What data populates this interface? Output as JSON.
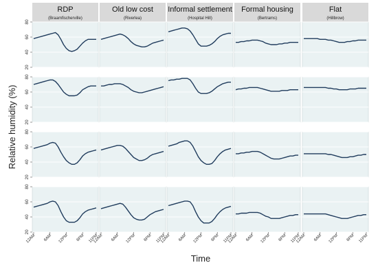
{
  "chart_data": {
    "type": "line",
    "title": "",
    "xlabel": "Time",
    "ylabel": "Relative humidity (%)",
    "ylim": [
      20,
      80
    ],
    "yticks": [
      "20",
      "40",
      "60",
      "80"
    ],
    "xlim": [
      0,
      23
    ],
    "x_tick_positions": [
      0,
      6,
      12,
      18,
      23
    ],
    "x_tick_labels": [
      "12AM",
      "6AM",
      "12PM",
      "6PM",
      "11PM"
    ],
    "x": [
      0,
      1,
      2,
      3,
      4,
      5,
      6,
      7,
      8,
      9,
      10,
      11,
      12,
      13,
      14,
      15,
      16,
      17,
      18,
      19,
      20,
      21,
      22,
      23
    ],
    "grid": true,
    "legend": "none",
    "line_color": "#1f3b5c",
    "panel_header_color": "#d9d9d9",
    "plot_bg_color": "#eaf2f3",
    "columns": [
      {
        "name": "RDP",
        "sub": "(Braamfischerville)"
      },
      {
        "name": "Old low cost",
        "sub": "(Riverlea)"
      },
      {
        "name": "Informal settlement",
        "sub": "(Hospital Hill)"
      },
      {
        "name": "Formal housing",
        "sub": "(Bertrams)"
      },
      {
        "name": "Flat",
        "sub": "(Hillbrow)"
      }
    ],
    "rows": [
      {
        "series": [
          {
            "values": [
              58,
              59,
              60,
              61,
              62,
              63,
              64,
              65,
              66,
              63,
              57,
              50,
              45,
              42,
              41,
              42,
              44,
              48,
              52,
              55,
              57,
              57,
              57,
              57
            ]
          },
          {
            "values": [
              57,
              58,
              59,
              60,
              61,
              62,
              63,
              64,
              63,
              61,
              58,
              54,
              51,
              49,
              48,
              47,
              47,
              48,
              50,
              52,
              53,
              54,
              55,
              56
            ]
          },
          {
            "values": [
              67,
              68,
              69,
              70,
              71,
              72,
              72,
              71,
              68,
              63,
              57,
              51,
              48,
              48,
              48,
              49,
              51,
              54,
              58,
              61,
              63,
              64,
              65,
              65
            ]
          },
          {
            "values": [
              53,
              53,
              54,
              54,
              55,
              55,
              56,
              56,
              56,
              55,
              54,
              52,
              51,
              50,
              50,
              50,
              51,
              51,
              52,
              52,
              53,
              53,
              53,
              53
            ]
          },
          {
            "values": [
              58,
              58,
              58,
              58,
              58,
              58,
              57,
              57,
              57,
              56,
              56,
              55,
              54,
              53,
              53,
              53,
              54,
              54,
              55,
              55,
              56,
              56,
              56,
              56
            ]
          }
        ]
      },
      {
        "series": [
          {
            "values": [
              70,
              71,
              72,
              73,
              74,
              75,
              76,
              76,
              74,
              70,
              65,
              60,
              57,
              55,
              55,
              55,
              56,
              59,
              63,
              65,
              67,
              68,
              68,
              68
            ]
          },
          {
            "values": [
              68,
              68,
              69,
              70,
              70,
              71,
              71,
              71,
              70,
              68,
              66,
              63,
              61,
              60,
              59,
              59,
              60,
              61,
              62,
              63,
              64,
              65,
              66,
              67
            ]
          },
          {
            "values": [
              75,
              76,
              76,
              77,
              77,
              78,
              78,
              78,
              76,
              71,
              65,
              60,
              58,
              58,
              58,
              59,
              61,
              64,
              67,
              69,
              71,
              72,
              73,
              73
            ]
          },
          {
            "values": [
              63,
              64,
              64,
              65,
              65,
              66,
              66,
              66,
              66,
              65,
              64,
              63,
              62,
              61,
              61,
              61,
              61,
              62,
              62,
              62,
              63,
              63,
              63,
              63
            ]
          },
          {
            "values": [
              66,
              66,
              66,
              66,
              66,
              66,
              66,
              66,
              66,
              65,
              65,
              64,
              64,
              63,
              63,
              63,
              63,
              64,
              64,
              64,
              65,
              65,
              65,
              65
            ]
          }
        ]
      },
      {
        "series": [
          {
            "values": [
              58,
              59,
              60,
              61,
              62,
              63,
              65,
              66,
              65,
              60,
              53,
              47,
              42,
              39,
              37,
              37,
              39,
              43,
              48,
              51,
              53,
              54,
              55,
              56
            ]
          },
          {
            "values": [
              56,
              57,
              58,
              59,
              60,
              61,
              62,
              62,
              61,
              58,
              54,
              50,
              46,
              44,
              42,
              42,
              43,
              45,
              48,
              50,
              51,
              52,
              53,
              54
            ]
          },
          {
            "values": [
              61,
              62,
              63,
              64,
              66,
              67,
              68,
              68,
              66,
              61,
              54,
              47,
              42,
              39,
              37,
              37,
              38,
              42,
              47,
              51,
              54,
              56,
              57,
              58
            ]
          },
          {
            "values": [
              51,
              51,
              52,
              52,
              53,
              53,
              54,
              54,
              54,
              53,
              51,
              49,
              47,
              45,
              44,
              44,
              44,
              45,
              46,
              47,
              48,
              48,
              49,
              49
            ]
          },
          {
            "values": [
              51,
              51,
              51,
              51,
              51,
              51,
              51,
              51,
              51,
              50,
              50,
              49,
              48,
              47,
              46,
              46,
              46,
              47,
              47,
              48,
              49,
              49,
              50,
              50
            ]
          }
        ]
      },
      {
        "series": [
          {
            "values": [
              53,
              54,
              55,
              56,
              57,
              58,
              60,
              61,
              60,
              55,
              47,
              40,
              35,
              33,
              33,
              33,
              35,
              39,
              44,
              47,
              49,
              50,
              51,
              52
            ]
          },
          {
            "values": [
              51,
              52,
              53,
              54,
              55,
              56,
              57,
              58,
              57,
              53,
              48,
              43,
              39,
              37,
              36,
              36,
              37,
              40,
              43,
              45,
              47,
              48,
              49,
              50
            ]
          },
          {
            "values": [
              55,
              56,
              57,
              58,
              59,
              60,
              61,
              61,
              60,
              55,
              47,
              40,
              35,
              32,
              32,
              32,
              34,
              38,
              43,
              47,
              50,
              52,
              53,
              54
            ]
          },
          {
            "values": [
              44,
              44,
              45,
              45,
              45,
              46,
              46,
              46,
              46,
              45,
              43,
              41,
              40,
              38,
              38,
              38,
              38,
              39,
              40,
              41,
              42,
              42,
              43,
              43
            ]
          },
          {
            "values": [
              44,
              44,
              44,
              44,
              44,
              44,
              44,
              44,
              44,
              43,
              42,
              41,
              40,
              39,
              38,
              38,
              38,
              39,
              40,
              41,
              42,
              42,
              43,
              43
            ]
          }
        ]
      }
    ]
  }
}
